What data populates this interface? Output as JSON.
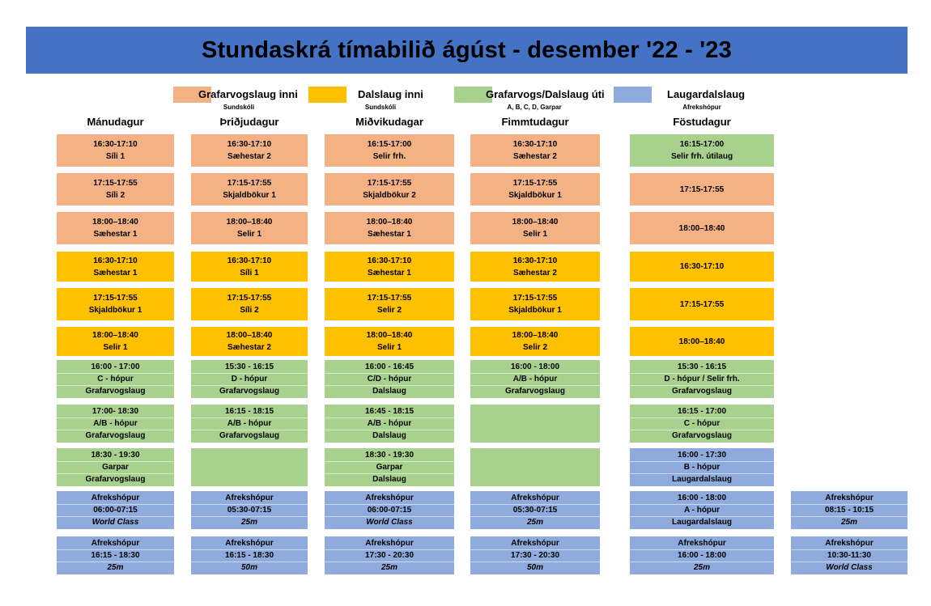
{
  "title": "Stundaskrá tímabilið ágúst - desember '22 - '23",
  "colors": {
    "header": "#4472C4",
    "orange": "#F4B183",
    "yellow": "#FFC000",
    "green": "#A9D18E",
    "blue": "#8FAADC"
  },
  "legend": [
    {
      "label": "Grafarvogslaug inni",
      "sub": "Sundskóli",
      "color": "orange"
    },
    {
      "label": "Dalslaug inni",
      "sub": "Sundskóli",
      "color": "yellow"
    },
    {
      "label": "Grafarvogs/Dalslaug úti",
      "sub": "A, B, C, D, Garpar",
      "color": "green"
    },
    {
      "label": "Laugardalslaug",
      "sub": "Afrekshópur",
      "color": "blue"
    }
  ],
  "days": [
    "Mánudagur",
    "Þriðjudagur",
    "Miðvikudagar",
    "Fimmtudagur",
    "Föstudagur"
  ],
  "rows": [
    {
      "color": "orange",
      "cells": [
        [
          "16:30-17:10",
          "Síli 1"
        ],
        [
          "16:30-17:10",
          "Sæhestar 2"
        ],
        [
          "16:15-17:00",
          "Selir frh."
        ],
        [
          "16:30-17:10",
          "Sæhestar 2"
        ],
        {
          "color": "green",
          "lines": [
            "16:15-17:00",
            "Selir frh. útilaug"
          ]
        }
      ]
    },
    {
      "color": "orange",
      "cells": [
        [
          "17:15-17:55",
          "Síli 2"
        ],
        [
          "17:15-17:55",
          "Skjaldbökur 1"
        ],
        [
          "17:15-17:55",
          "Skjaldbökur 2"
        ],
        [
          "17:15-17:55",
          "Skjaldbökur 1"
        ],
        [
          "17:15-17:55",
          ""
        ]
      ]
    },
    {
      "color": "orange",
      "cells": [
        [
          "18:00–18:40",
          "Sæhestar 1"
        ],
        [
          "18:00–18:40",
          "Selir 1"
        ],
        [
          "18:00–18:40",
          "Sæhestar 1"
        ],
        [
          "18:00–18:40",
          "Selir 1"
        ],
        [
          "18:00–18:40",
          ""
        ]
      ]
    },
    {
      "color": "yellow",
      "cells": [
        [
          "16:30-17:10",
          "Sæhestar 1"
        ],
        [
          "16:30-17:10",
          "Síli 1"
        ],
        [
          "16:30-17:10",
          "Sæhestar 1"
        ],
        [
          "16:30-17:10",
          "Sæhestar 2"
        ],
        [
          "16:30-17:10",
          ""
        ]
      ]
    },
    {
      "color": "yellow",
      "cells": [
        [
          "17:15-17:55",
          "Skjaldbökur 1"
        ],
        [
          "17:15-17:55",
          "Síli 2"
        ],
        [
          "17:15-17:55",
          "Selir  2"
        ],
        [
          "17:15-17:55",
          "Skjaldbökur 1"
        ],
        [
          "17:15-17:55",
          ""
        ]
      ]
    },
    {
      "color": "yellow",
      "cells": [
        [
          "18:00–18:40",
          "Selir 1"
        ],
        [
          "18:00–18:40",
          "Sæhestar 2"
        ],
        [
          "18:00–18:40",
          "Selir 1"
        ],
        [
          "18:00–18:40",
          "Selir 2"
        ],
        [
          "18:00–18:40",
          ""
        ]
      ]
    },
    {
      "color": "green",
      "cells": [
        [
          "16:00 - 17:00",
          "C - hópur",
          "Grafarvogslaug"
        ],
        [
          "15:30 - 16:15",
          "D - hópur",
          "Grafarvogslaug"
        ],
        [
          "16:00 - 16:45",
          "C/D - hópur",
          "Dalslaug"
        ],
        [
          "16:00 - 18:00",
          "A/B - hópur",
          "Grafarvogslaug"
        ],
        [
          "15:30 - 16:15",
          "D - hópur / Selir frh.",
          "Grafarvogslaug"
        ]
      ]
    },
    {
      "color": "green",
      "cells": [
        [
          "17:00- 18:30",
          "A/B - hópur",
          "Grafarvogslaug"
        ],
        [
          "16:15 - 18:15",
          "A/B - hópur",
          "Grafarvogslaug"
        ],
        [
          "16:45 - 18:15",
          "A/B - hópur",
          "Dalslaug"
        ],
        [],
        [
          "16:15 - 17:00",
          "C - hópur",
          "Grafarvogslaug"
        ]
      ]
    },
    {
      "color": "green",
      "cells": [
        [
          "18:30 - 19:30",
          "Garpar",
          "Grafarvogslaug"
        ],
        [],
        [
          "18:30 - 19:30",
          "Garpar",
          "Dalslaug"
        ],
        [],
        {
          "color": "blue",
          "lines": [
            "16:00 - 17:30",
            "B - hópur",
            "Laugardalslaug"
          ]
        }
      ]
    },
    {
      "color": "blue",
      "cells": [
        [
          "Afrekshópur",
          "06:00-07:15",
          "World Class"
        ],
        [
          "Afrekshópur",
          "05:30-07:15",
          "25m"
        ],
        [
          "Afrekshópur",
          "06:00-07:15",
          "World Class"
        ],
        [
          "Afrekshópur",
          "05:30-07:15",
          "25m"
        ],
        [
          "16:00 - 18:00",
          "A - hópur",
          "Laugardalslaug"
        ],
        [
          "Afrekshópur",
          "08:15 - 10:15",
          "25m"
        ]
      ],
      "italic_last": [
        true,
        true,
        true,
        true,
        false,
        true
      ]
    },
    {
      "color": "blue",
      "cells": [
        [
          "Afrekshópur",
          "16:15 - 18:30",
          "25m"
        ],
        [
          "Afrekshópur",
          "16:15 - 18:30",
          "50m"
        ],
        [
          "Afrekshópur",
          "17:30 - 20:30",
          "25m"
        ],
        [
          "Afrekshópur",
          "17:30 - 20:30",
          "50m"
        ],
        [
          "Afrekshópur",
          "16:00 - 18:00",
          "25m"
        ],
        [
          "Afrekshópur",
          "10:30-11:30",
          "World Class"
        ]
      ],
      "italic_last": [
        true,
        true,
        true,
        true,
        true,
        true
      ]
    }
  ]
}
